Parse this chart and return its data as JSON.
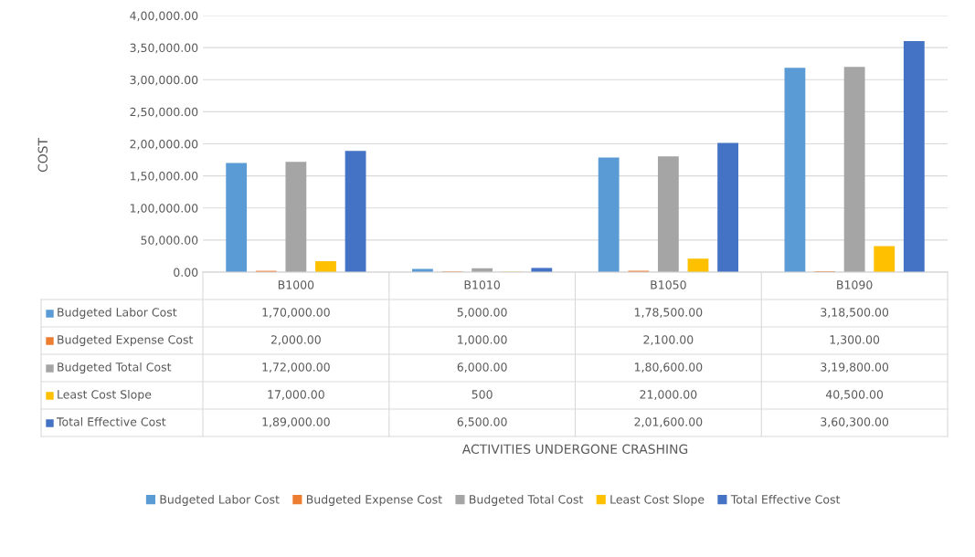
{
  "chart_data": {
    "type": "bar",
    "annotations": [
      "COST",
      "ACTIVITIES UNDERGONE CRASHING"
    ],
    "categories": [
      "B1000",
      "B1010",
      "B1050",
      "B1090"
    ],
    "series": [
      {
        "name": "Budgeted Labor Cost",
        "color": "#5b9bd5",
        "values": [
          170000,
          5000,
          178500,
          318500
        ],
        "value_labels": [
          "1,70,000.00",
          "5,000.00",
          "1,78,500.00",
          "3,18,500.00"
        ]
      },
      {
        "name": "Budgeted Expense Cost",
        "color": "#ed7d31",
        "values": [
          2000,
          1000,
          2100,
          1300
        ],
        "value_labels": [
          "2,000.00",
          "1,000.00",
          "2,100.00",
          "1,300.00"
        ]
      },
      {
        "name": "Budgeted Total Cost",
        "color": "#a5a5a5",
        "values": [
          172000,
          6000,
          180600,
          319800
        ],
        "value_labels": [
          "1,72,000.00",
          "6,000.00",
          "1,80,600.00",
          "3,19,800.00"
        ]
      },
      {
        "name": "Least Cost Slope",
        "color": "#ffc000",
        "values": [
          17000,
          500,
          21000,
          40500
        ],
        "value_labels": [
          "17,000.00",
          "500",
          "21,000.00",
          "40,500.00"
        ]
      },
      {
        "name": "Total Effective Cost",
        "color": "#4472c4",
        "values": [
          189000,
          6500,
          201600,
          360300
        ],
        "value_labels": [
          "1,89,000.00",
          "6,500.00",
          "2,01,600.00",
          "3,60,300.00"
        ]
      }
    ],
    "ylim": [
      0,
      400000
    ],
    "yticks": [
      {
        "value": 0,
        "label": "0.00"
      },
      {
        "value": 50000,
        "label": "50,000.00"
      },
      {
        "value": 100000,
        "label": "1,00,000.00"
      },
      {
        "value": 150000,
        "label": "1,50,000.00"
      },
      {
        "value": 200000,
        "label": "2,00,000.00"
      },
      {
        "value": 250000,
        "label": "2,50,000.00"
      },
      {
        "value": 300000,
        "label": "3,00,000.00"
      },
      {
        "value": 350000,
        "label": "3,50,000.00"
      },
      {
        "value": 400000,
        "label": "4,00,000.00"
      }
    ],
    "grid": "y",
    "legend": "bottom"
  }
}
